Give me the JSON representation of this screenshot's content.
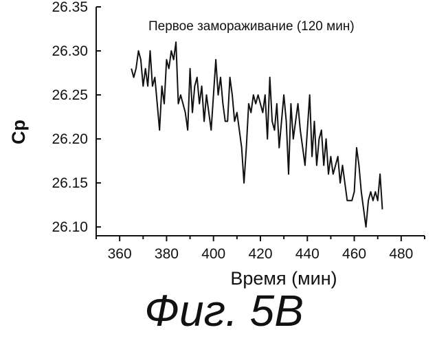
{
  "chart_data": {
    "type": "line",
    "title": "",
    "annotation": "Первое замораживание (120 мин)",
    "xlabel": "Время (мин)",
    "ylabel": "Cp",
    "xlim": [
      350,
      490
    ],
    "ylim": [
      26.09,
      26.35
    ],
    "xticks": [
      360,
      380,
      400,
      420,
      440,
      460,
      480
    ],
    "xtick_labels": [
      "360",
      "380",
      "400",
      "420",
      "440",
      "460",
      "480"
    ],
    "yticks": [
      26.1,
      26.15,
      26.2,
      26.25,
      26.3,
      26.35
    ],
    "ytick_labels": [
      "26.10",
      "26.15",
      "26.20",
      "26.25",
      "26.30",
      "26.35"
    ],
    "grid": false,
    "line_color": "#111111",
    "series": [
      {
        "x": [
          365,
          366,
          367,
          368,
          369,
          370,
          371,
          372,
          373,
          374,
          375,
          376,
          377,
          378,
          379,
          380,
          381,
          382,
          383,
          384,
          385,
          386,
          387,
          388,
          389,
          390,
          391,
          392,
          393,
          394,
          395,
          396,
          397,
          398,
          399,
          400,
          401,
          402,
          403,
          404,
          405,
          406,
          407,
          408,
          409,
          410,
          411,
          412,
          413,
          414,
          415,
          416,
          417,
          418,
          419,
          420,
          421,
          422,
          423,
          424,
          425,
          426,
          427,
          428,
          429,
          430,
          431,
          432,
          433,
          434,
          435,
          436,
          437,
          438,
          439,
          440,
          441,
          442,
          443,
          444,
          445,
          446,
          447,
          448,
          449,
          450,
          451,
          452,
          453,
          454,
          455,
          456,
          457,
          458,
          459,
          460,
          461,
          462,
          463,
          464,
          465,
          466,
          467,
          468,
          469,
          470,
          471,
          472
        ],
        "y": [
          26.28,
          26.27,
          26.28,
          26.3,
          26.29,
          26.26,
          26.28,
          26.26,
          26.3,
          26.26,
          26.27,
          26.24,
          26.21,
          26.26,
          26.24,
          26.29,
          26.28,
          26.3,
          26.29,
          26.31,
          26.24,
          26.25,
          26.24,
          26.23,
          26.21,
          26.28,
          26.23,
          26.26,
          26.27,
          26.24,
          26.26,
          26.22,
          26.25,
          26.23,
          26.21,
          26.25,
          26.29,
          26.25,
          26.27,
          26.24,
          26.22,
          26.22,
          26.27,
          26.25,
          26.22,
          26.23,
          26.21,
          26.19,
          26.15,
          26.19,
          26.24,
          26.23,
          26.25,
          26.24,
          26.25,
          26.24,
          26.23,
          26.25,
          26.2,
          26.27,
          26.22,
          26.21,
          26.24,
          26.19,
          26.22,
          26.25,
          26.22,
          26.16,
          26.24,
          26.2,
          26.22,
          26.24,
          26.21,
          26.19,
          26.17,
          26.21,
          26.25,
          26.18,
          26.22,
          26.17,
          26.2,
          26.21,
          26.17,
          26.2,
          26.16,
          26.18,
          26.16,
          26.17,
          26.18,
          26.15,
          26.17,
          26.15,
          26.13,
          26.13,
          26.13,
          26.14,
          26.19,
          26.17,
          26.14,
          26.12,
          26.1,
          26.13,
          26.14,
          26.13,
          26.14,
          26.13,
          26.16,
          26.12
        ]
      }
    ]
  },
  "caption": "Фиг. 5B"
}
